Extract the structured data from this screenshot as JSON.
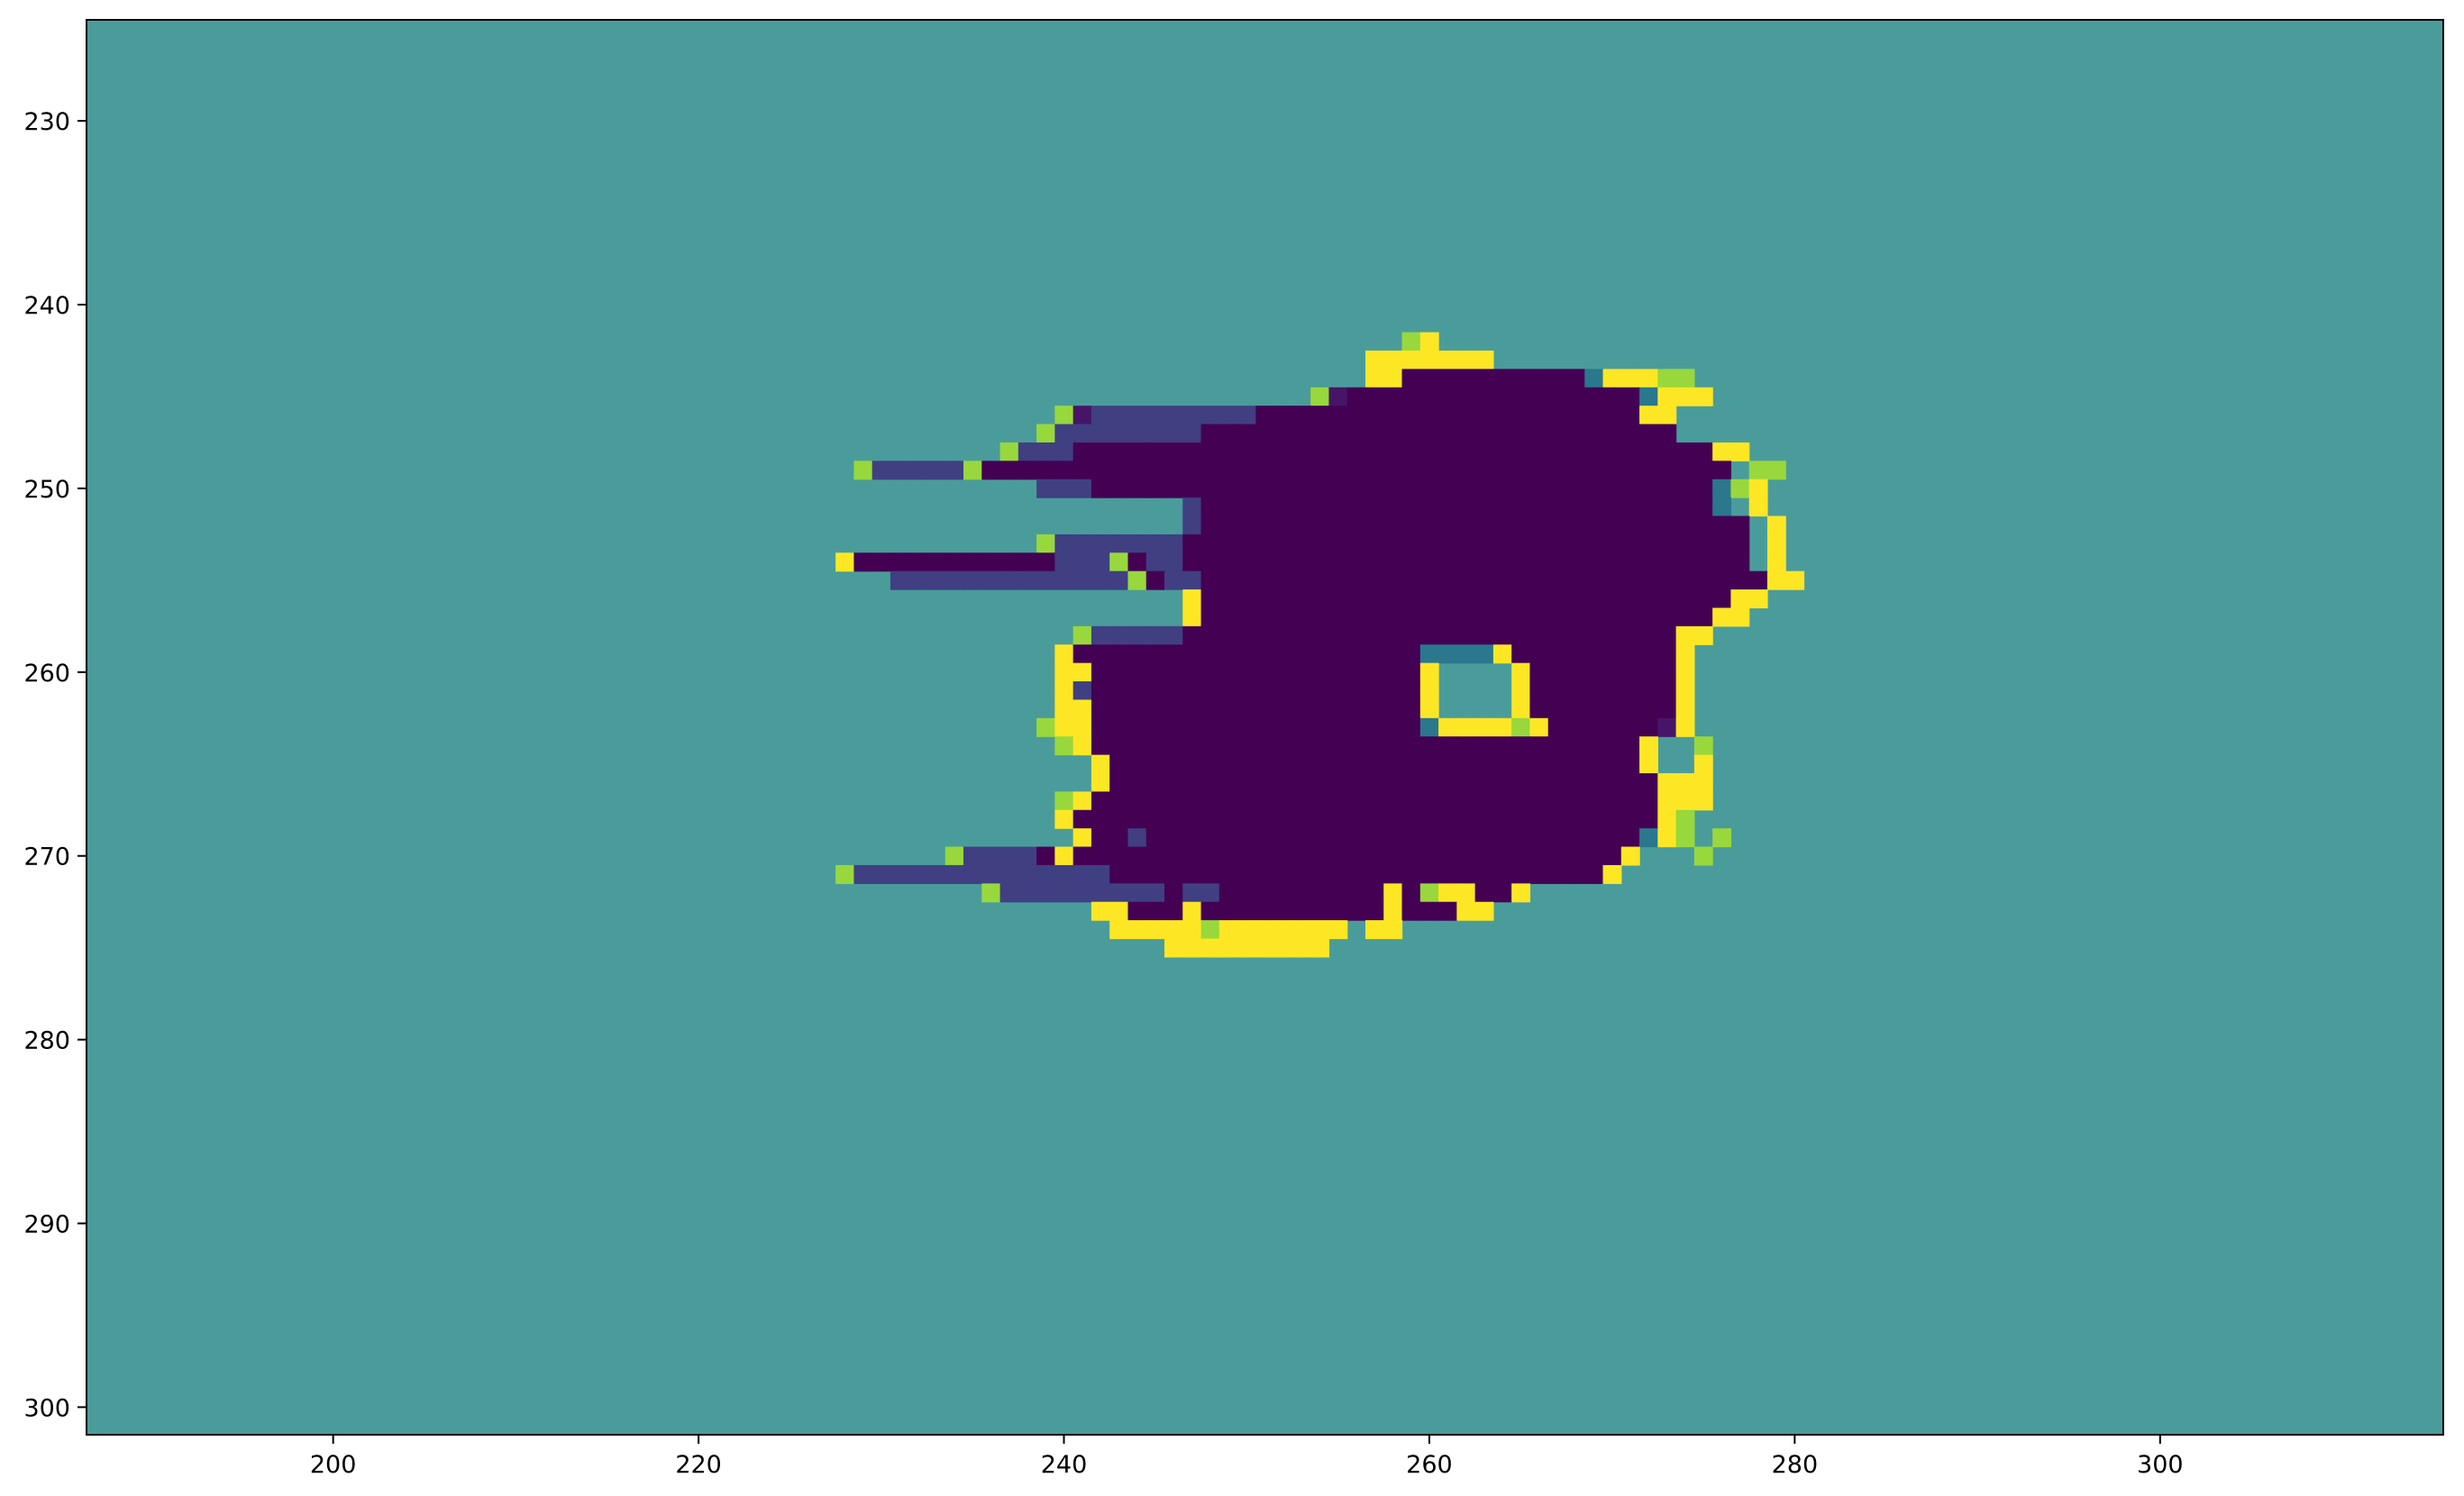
{
  "chart_data": {
    "type": "heatmap",
    "title": "",
    "xlabel": "",
    "ylabel": "",
    "xlim": [
      186.5,
      315.5
    ],
    "ylim": [
      301.5,
      224.5
    ],
    "y_inverted": true,
    "xticks": [
      200,
      220,
      240,
      260,
      280,
      300
    ],
    "yticks": [
      230,
      240,
      250,
      260,
      270,
      280,
      290,
      300
    ],
    "colorbar": false,
    "grid": false,
    "colormap": "viridis",
    "value_colors": {
      "-1": "#440154",
      "-0.5": "#3b528b",
      "0": "#21918c",
      "0.5": "#5ec962",
      "1": "#fde725"
    },
    "background_value": 0,
    "background_color": "#4a9c9b",
    "value_legend": {
      "D": -1.0,
      "d": -0.85,
      "v": -0.6,
      "b": -0.2,
      "g": 0.7,
      "Y": 1.0
    },
    "origin_col": 228,
    "origin_row": 242,
    "rows": [
      "...............................gY..................",
      ".............................YYYYYYY...............",
      ".............................YYDDDDDDDDDDbYYYgg....",
      "..........................gdDDDDDDDDDDDDDDDDbYYY....",
      "............gdvvvvvvvvvDDDDDDDDDDDDDDDDDDDDDYY.....",
      "...........gvvvvvvvvDDDDDDDDDDDDDDDDDDDDDDDDDD.....",
      ".........gvvvDDDDDDDDDDDDDDDDDDDDDDDDDDDDDDDDDDDYY...",
      ".gvvvvvgDDDDDDDDDDDDDDDDDDDDDDDDDDDDDDDDDDDDDDDDD.gg..",
      "...........vvvDDDDDDDDDDDDDDDDDDDDDDDDDDDDDDDDDDbgY...",
      "...................vDDDDDDDDDDDDDDDDDDDDDDDDDDDDb.Y....",
      "...................vDDDDDDDDDDDDDDDDDDDDDDDDDDDDDD.Y....",
      "...........gvvvvvvvDDDDDDDDDDDDDDDDDDDDDDDDDDDDDDD.Y....",
      "YDDDDDDDDDDDvvvgDvvDDDDDDDDDDDDDDDDDDDDDDDDDDDDDDD.Y....",
      "...vvvvvvvvvvvvvgDvvDDDDDDDDDDDDDDDDDDDDDDDDDDDDDDDYY....",
      "...................YDDDDDDDDDDDDDDDDDDDDDDDDDDDDDYY......",
      "...................YDDDDDDDDDDDDDDDDDDDDDDDDDDDDYY.......",
      ".............gvvvvvDDDDDDDDDDDDDDDDDDDDDDDDDDDYY........",
      "............YDDDDDDDDDDDDDDDDDDDbbbbYDDDDDDDDDY.........",
      "............YYDDDDDDDDDDDDDDDDDDY....YDDDDDDDDY.........",
      "............YvDDDDDDDDDDDDDDDDDDY....YDDDDDDDDY.........",
      "............YYDDDDDDDDDDDDDDDDDDY....YDDDDDDDDY.........",
      "...........gYYDDDDDDDDDDDDDDDDDDbYYYYgYDDDDDDdY.........",
      "............gYDDDDDDDDDDDDDDDDDDDDDDDDDDDDDDY..g.......",
      "..............YDDDDDDDDDDDDDDDDDDDDDDDDDDDDDY..Y.......",
      "..............YDDDDDDDDDDDDDDDDDDDDDDDDDDDDDDYYY.......",
      "............gYDDDDDDDDDDDDDDDDDDDDDDDDDDDDDDDYYY.......",
      "............YDDDDDDDDDDDDDDDDDDDDDDDDDDDDDDDDYg........",
      ".............YDDvDDDDDDDDDDDDDDDDDDDDDDDDDDDbYg.g.......",
      "......gvvvvDYDDDDDDDDDDDDDDDDDDDDDDDDDDDDDDY...g.......",
      "gvvvvvvvvvvvvvvDDDDDDDDDDDDDDDDDDDDDDDDDDDY...........",
      "........gvvvvvvvvvDvvDDDDDDDDDYDgYYDDY..................",
      "..............YYDDDYDDDDDDDDDDYDDDYY....................",
      "...............YYYYYgYYYYYYY.YY.........................",
      "..................YYYYYYYYY.............................."
    ]
  }
}
